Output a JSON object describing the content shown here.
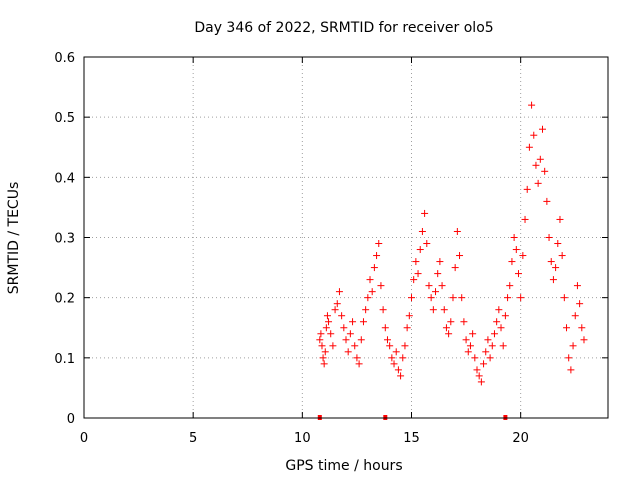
{
  "chart_data": {
    "type": "scatter",
    "title": "Day 346 of 2022, SRMTID for receiver olo5",
    "xlabel": "GPS time / hours",
    "ylabel": "SRMTID / TECUs",
    "xlim": [
      0,
      24
    ],
    "ylim": [
      0,
      0.6
    ],
    "xticks": [
      0,
      5,
      10,
      15,
      20
    ],
    "yticks": [
      0,
      0.1,
      0.2,
      0.3,
      0.4,
      0.5,
      0.6
    ],
    "xtick_labels": [
      "0",
      "5",
      "10",
      "15",
      "20"
    ],
    "ytick_labels": [
      "0",
      "0.1",
      "0.2",
      "0.3",
      "0.4",
      "0.5",
      "0.6"
    ],
    "grid": true,
    "marker": "+",
    "color": "#ff0000",
    "series": [
      {
        "name": "SRMTID",
        "points": [
          [
            10.8,
            0.13
          ],
          [
            10.85,
            0.14
          ],
          [
            10.9,
            0.12
          ],
          [
            10.95,
            0.1
          ],
          [
            11.0,
            0.09
          ],
          [
            11.05,
            0.11
          ],
          [
            11.1,
            0.15
          ],
          [
            11.15,
            0.17
          ],
          [
            11.2,
            0.16
          ],
          [
            11.3,
            0.14
          ],
          [
            11.4,
            0.12
          ],
          [
            11.5,
            0.18
          ],
          [
            11.6,
            0.19
          ],
          [
            11.7,
            0.21
          ],
          [
            11.8,
            0.17
          ],
          [
            11.9,
            0.15
          ],
          [
            12.0,
            0.13
          ],
          [
            12.1,
            0.11
          ],
          [
            12.2,
            0.14
          ],
          [
            12.3,
            0.16
          ],
          [
            12.4,
            0.12
          ],
          [
            12.5,
            0.1
          ],
          [
            12.6,
            0.09
          ],
          [
            12.7,
            0.13
          ],
          [
            12.8,
            0.16
          ],
          [
            12.9,
            0.18
          ],
          [
            13.0,
            0.2
          ],
          [
            13.1,
            0.23
          ],
          [
            13.2,
            0.21
          ],
          [
            13.3,
            0.25
          ],
          [
            13.4,
            0.27
          ],
          [
            13.5,
            0.29
          ],
          [
            13.6,
            0.22
          ],
          [
            13.7,
            0.18
          ],
          [
            13.8,
            0.15
          ],
          [
            13.9,
            0.13
          ],
          [
            14.0,
            0.12
          ],
          [
            14.1,
            0.1
          ],
          [
            14.2,
            0.09
          ],
          [
            14.3,
            0.11
          ],
          [
            14.4,
            0.08
          ],
          [
            14.5,
            0.07
          ],
          [
            14.6,
            0.1
          ],
          [
            14.7,
            0.12
          ],
          [
            14.8,
            0.15
          ],
          [
            14.9,
            0.17
          ],
          [
            15.0,
            0.2
          ],
          [
            15.1,
            0.23
          ],
          [
            15.2,
            0.26
          ],
          [
            15.3,
            0.24
          ],
          [
            15.4,
            0.28
          ],
          [
            15.5,
            0.31
          ],
          [
            15.6,
            0.34
          ],
          [
            15.7,
            0.29
          ],
          [
            15.8,
            0.22
          ],
          [
            15.9,
            0.2
          ],
          [
            16.0,
            0.18
          ],
          [
            16.1,
            0.21
          ],
          [
            16.2,
            0.24
          ],
          [
            16.3,
            0.26
          ],
          [
            16.4,
            0.22
          ],
          [
            16.5,
            0.18
          ],
          [
            16.6,
            0.15
          ],
          [
            16.7,
            0.14
          ],
          [
            16.8,
            0.16
          ],
          [
            16.9,
            0.2
          ],
          [
            17.0,
            0.25
          ],
          [
            17.1,
            0.31
          ],
          [
            17.2,
            0.27
          ],
          [
            17.3,
            0.2
          ],
          [
            17.4,
            0.16
          ],
          [
            17.5,
            0.13
          ],
          [
            17.6,
            0.11
          ],
          [
            17.7,
            0.12
          ],
          [
            17.8,
            0.14
          ],
          [
            17.9,
            0.1
          ],
          [
            18.0,
            0.08
          ],
          [
            18.1,
            0.07
          ],
          [
            18.2,
            0.06
          ],
          [
            18.3,
            0.09
          ],
          [
            18.4,
            0.11
          ],
          [
            18.5,
            0.13
          ],
          [
            18.6,
            0.1
          ],
          [
            18.7,
            0.12
          ],
          [
            18.8,
            0.14
          ],
          [
            18.9,
            0.16
          ],
          [
            19.0,
            0.18
          ],
          [
            19.1,
            0.15
          ],
          [
            19.2,
            0.12
          ],
          [
            19.3,
            0.17
          ],
          [
            19.4,
            0.2
          ],
          [
            19.5,
            0.22
          ],
          [
            19.6,
            0.26
          ],
          [
            19.7,
            0.3
          ],
          [
            19.8,
            0.28
          ],
          [
            19.9,
            0.24
          ],
          [
            20.0,
            0.2
          ],
          [
            20.1,
            0.27
          ],
          [
            20.2,
            0.33
          ],
          [
            20.3,
            0.38
          ],
          [
            20.4,
            0.45
          ],
          [
            20.5,
            0.52
          ],
          [
            20.6,
            0.47
          ],
          [
            20.7,
            0.42
          ],
          [
            20.8,
            0.39
          ],
          [
            20.9,
            0.43
          ],
          [
            21.0,
            0.48
          ],
          [
            21.1,
            0.41
          ],
          [
            21.2,
            0.36
          ],
          [
            21.3,
            0.3
          ],
          [
            21.4,
            0.26
          ],
          [
            21.5,
            0.23
          ],
          [
            21.6,
            0.25
          ],
          [
            21.7,
            0.29
          ],
          [
            21.8,
            0.33
          ],
          [
            21.9,
            0.27
          ],
          [
            22.0,
            0.2
          ],
          [
            22.1,
            0.15
          ],
          [
            22.2,
            0.1
          ],
          [
            22.3,
            0.08
          ],
          [
            22.4,
            0.12
          ],
          [
            22.5,
            0.17
          ],
          [
            22.6,
            0.22
          ],
          [
            22.7,
            0.19
          ],
          [
            22.8,
            0.15
          ],
          [
            22.9,
            0.13
          ]
        ],
        "baseline_markers": [
          10.8,
          13.8,
          19.3
        ]
      }
    ]
  }
}
